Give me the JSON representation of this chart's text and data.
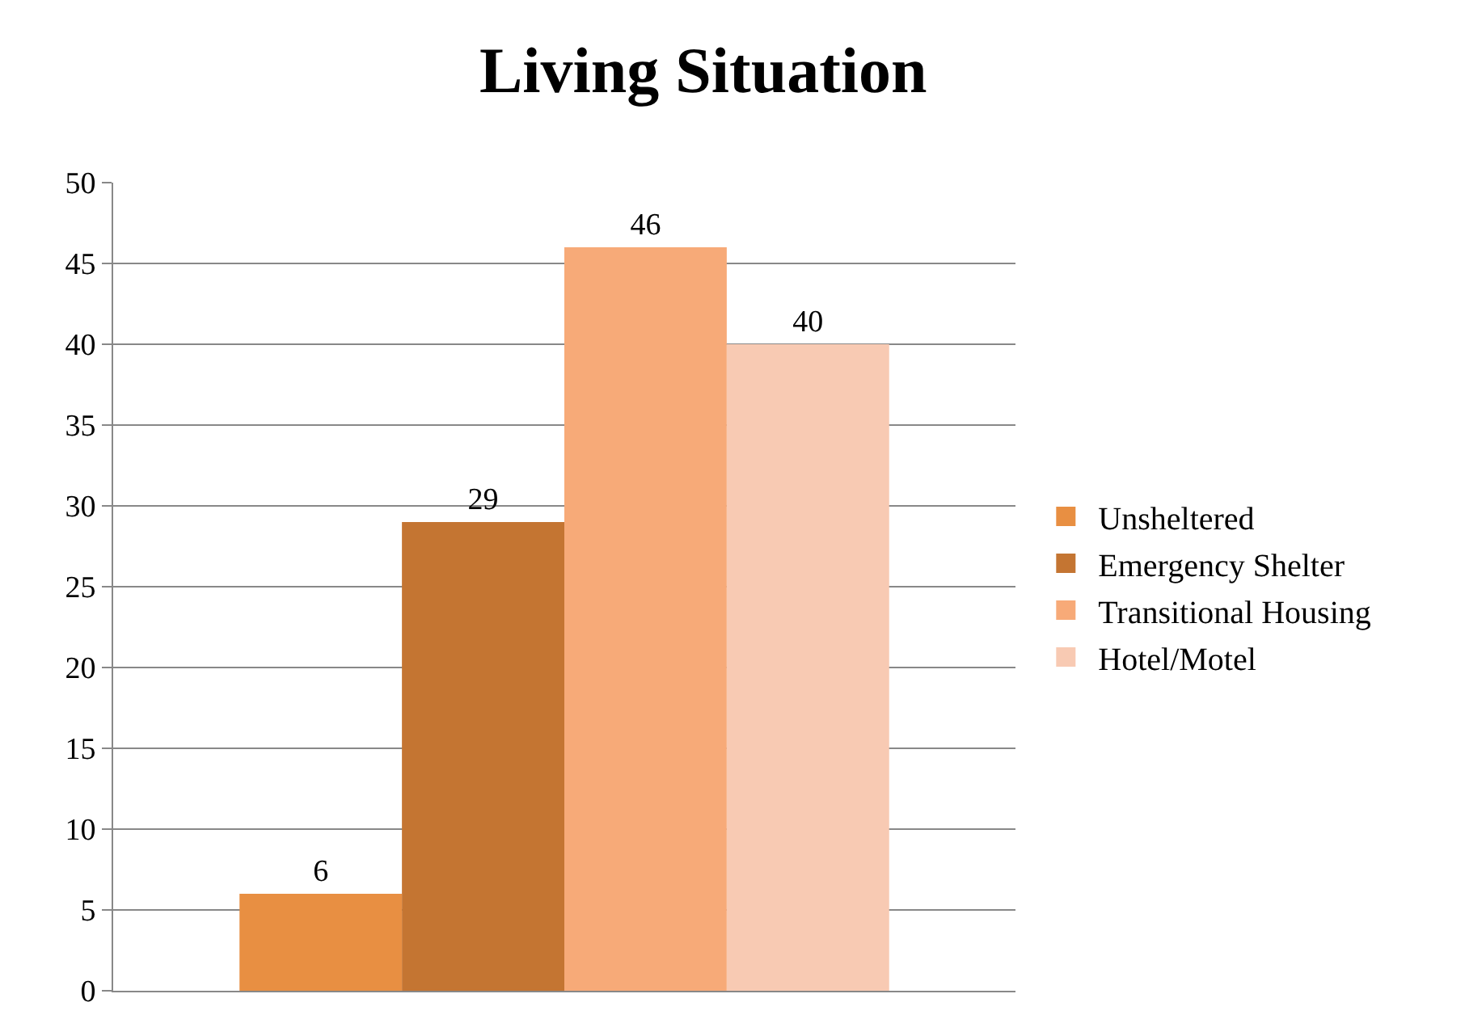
{
  "chart_data": {
    "type": "bar",
    "title": "Living Situation",
    "categories": [
      null
    ],
    "series": [
      {
        "name": "Unsheltered",
        "color": "#e88f42",
        "values": [
          6
        ]
      },
      {
        "name": "Emergency Shelter",
        "color": "#c47532",
        "values": [
          29
        ]
      },
      {
        "name": "Transitional Housing",
        "color": "#f7aa78",
        "values": [
          46
        ]
      },
      {
        "name": "Hotel/Motel",
        "color": "#f8cab3",
        "values": [
          40
        ]
      }
    ],
    "ylim": [
      0,
      50
    ],
    "yticks": [
      0,
      5,
      10,
      15,
      20,
      25,
      30,
      35,
      40,
      45,
      50
    ],
    "grid": "y",
    "legend": "right",
    "data_labels": true
  }
}
